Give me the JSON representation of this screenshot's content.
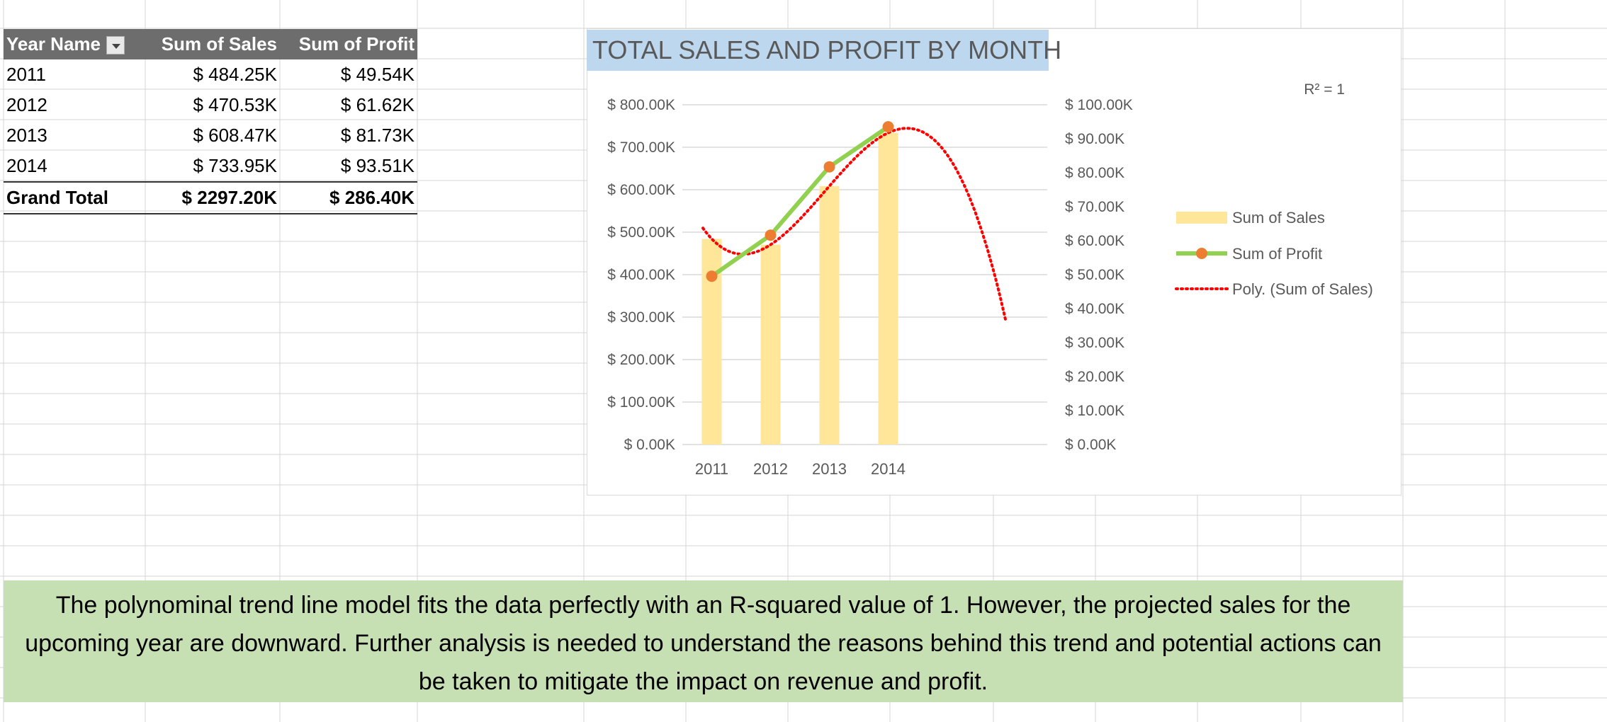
{
  "pivot": {
    "headers": [
      "Year Name",
      "Sum of Sales",
      "Sum of Profit"
    ],
    "rows": [
      {
        "year": "2011",
        "sales": "$ 484.25K",
        "profit": "$ 49.54K"
      },
      {
        "year": "2012",
        "sales": "$ 470.53K",
        "profit": "$ 61.62K"
      },
      {
        "year": "2013",
        "sales": "$ 608.47K",
        "profit": "$ 81.73K"
      },
      {
        "year": "2014",
        "sales": "$ 733.95K",
        "profit": "$ 93.51K"
      }
    ],
    "total": {
      "label": "Grand Total",
      "sales": "$ 2297.20K",
      "profit": "$ 286.40K"
    }
  },
  "chart_data": {
    "type": "bar",
    "title": "TOTAL SALES AND PROFIT BY MONTH",
    "categories": [
      "2011",
      "2012",
      "2013",
      "2014"
    ],
    "series": [
      {
        "name": "Sum of Sales",
        "type": "bar",
        "axis": "left",
        "values": [
          484.25,
          470.53,
          608.47,
          733.95
        ],
        "color": "#ffe699"
      },
      {
        "name": "Sum of Profit",
        "type": "line",
        "axis": "right",
        "values": [
          49.54,
          61.62,
          81.73,
          93.51
        ],
        "color": "#92d050",
        "marker_color": "#ed7d31"
      },
      {
        "name": "Poly. (Sum of Sales)",
        "type": "trendline",
        "axis": "left",
        "forward_periods": 2,
        "color": "#ff0000"
      }
    ],
    "left_axis": {
      "min": 0,
      "max": 800,
      "step": 100,
      "labels": [
        "$ 0.00K",
        "$ 100.00K",
        "$ 200.00K",
        "$ 300.00K",
        "$ 400.00K",
        "$ 500.00K",
        "$ 600.00K",
        "$ 700.00K",
        "$ 800.00K"
      ]
    },
    "right_axis": {
      "min": 0,
      "max": 100,
      "step": 10,
      "labels": [
        "$ 0.00K",
        "$ 10.00K",
        "$ 20.00K",
        "$ 30.00K",
        "$ 40.00K",
        "$ 50.00K",
        "$ 60.00K",
        "$ 70.00K",
        "$ 80.00K",
        "$ 90.00K",
        "$ 100.00K"
      ]
    },
    "r_squared_label": "R² = 1",
    "legend_position": "right",
    "grid": true
  },
  "note": {
    "text": "The polynominal trend line model fits the data perfectly with an R-squared value of 1. However, the projected sales for the upcoming year are downward. Further analysis is needed to understand the reasons behind this trend and potential actions can be taken to mitigate the impact on revenue and profit."
  },
  "colors": {
    "gridline": "#d4d4d4",
    "header_bg": "#6d6d6d",
    "title_bg": "#bdd7ee",
    "note_bg": "#c6e0b4"
  }
}
